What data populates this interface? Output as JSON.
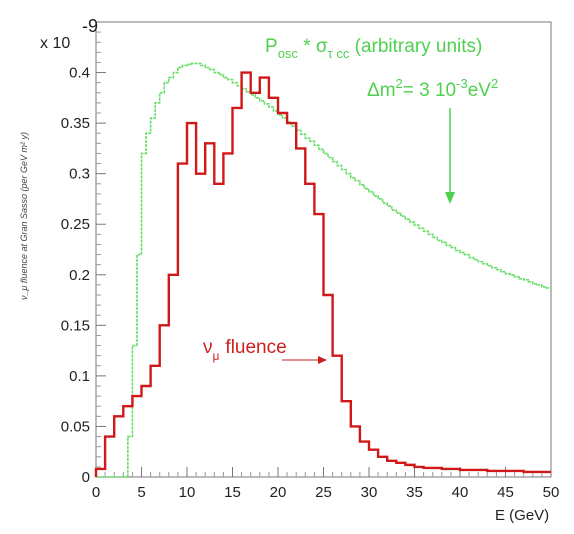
{
  "chart_data": {
    "type": "line",
    "step": true,
    "xlabel": "E (GeV)",
    "ylabel": "ν_μ fluence at Gran Sasso (per GeV m² y)",
    "y_multiplier": "x 10",
    "y_multiplier_exp": "-9",
    "xlim": [
      0,
      50
    ],
    "ylim": [
      0,
      0.45
    ],
    "xticks": [
      0,
      5,
      10,
      15,
      20,
      25,
      30,
      35,
      40,
      45,
      50
    ],
    "yticks": [
      0,
      0.05,
      0.1,
      0.15,
      0.2,
      0.25,
      0.3,
      0.35,
      0.4
    ],
    "ytick_labels": [
      "0",
      "0.05",
      "0.1",
      "0.15",
      "0.2",
      "0.25",
      "0.3",
      "0.35",
      "0.4"
    ],
    "xtick_labels": [
      "0",
      "5",
      "10",
      "15",
      "20",
      "25",
      "30",
      "35",
      "40",
      "45",
      "50"
    ],
    "grid": false,
    "colors": {
      "fluence": "#d01818",
      "oscillation": "#66dd66",
      "annotation_green": "#4fd14f",
      "annotation_red": "#cc2020"
    },
    "annotations": {
      "osc_p": "P",
      "osc_sub": "osc",
      "osc_mid": " * σ",
      "osc_sub2": "τ cc",
      "osc_tail": " (arbitrary units)",
      "dm_text": "Δm",
      "dm_sup": "2",
      "dm_mid": "= 3 10",
      "dm_sup2": "-3",
      "dm_unit": "eV",
      "dm_sup3": "2",
      "fluence_nu": "ν",
      "fluence_sub": "μ",
      "fluence_text": "fluence"
    },
    "series": [
      {
        "key": "fluence",
        "bin_width": 1,
        "x_start": 0,
        "values": [
          0.008,
          0.04,
          0.06,
          0.07,
          0.08,
          0.09,
          0.11,
          0.15,
          0.2,
          0.31,
          0.35,
          0.3,
          0.33,
          0.29,
          0.32,
          0.365,
          0.4,
          0.38,
          0.395,
          0.375,
          0.36,
          0.35,
          0.325,
          0.29,
          0.26,
          0.18,
          0.12,
          0.075,
          0.05,
          0.035,
          0.027,
          0.02,
          0.016,
          0.014,
          0.012,
          0.01,
          0.009,
          0.009,
          0.008,
          0.008,
          0.007,
          0.007,
          0.007,
          0.006,
          0.006,
          0.006,
          0.006,
          0.005,
          0.005,
          0.005
        ]
      },
      {
        "key": "oscillation",
        "bin_width": 0.5,
        "x_start": 0,
        "values": [
          0,
          0,
          0,
          0,
          0,
          0,
          0,
          0.04,
          0.13,
          0.22,
          0.32,
          0.34,
          0.355,
          0.37,
          0.38,
          0.39,
          0.395,
          0.4,
          0.405,
          0.407,
          0.408,
          0.409,
          0.409,
          0.407,
          0.405,
          0.403,
          0.4,
          0.398,
          0.395,
          0.393,
          0.39,
          0.387,
          0.384,
          0.381,
          0.378,
          0.375,
          0.372,
          0.369,
          0.366,
          0.362,
          0.358,
          0.355,
          0.351,
          0.347,
          0.343,
          0.339,
          0.335,
          0.332,
          0.328,
          0.324,
          0.32,
          0.316,
          0.312,
          0.308,
          0.304,
          0.3,
          0.296,
          0.293,
          0.289,
          0.285,
          0.282,
          0.278,
          0.275,
          0.271,
          0.268,
          0.264,
          0.261,
          0.258,
          0.255,
          0.252,
          0.249,
          0.246,
          0.243,
          0.24,
          0.237,
          0.234,
          0.232,
          0.229,
          0.227,
          0.224,
          0.222,
          0.22,
          0.217,
          0.215,
          0.213,
          0.211,
          0.209,
          0.207,
          0.205,
          0.203,
          0.201,
          0.2,
          0.198,
          0.196,
          0.195,
          0.193,
          0.191,
          0.19,
          0.188,
          0.187
        ]
      }
    ]
  }
}
